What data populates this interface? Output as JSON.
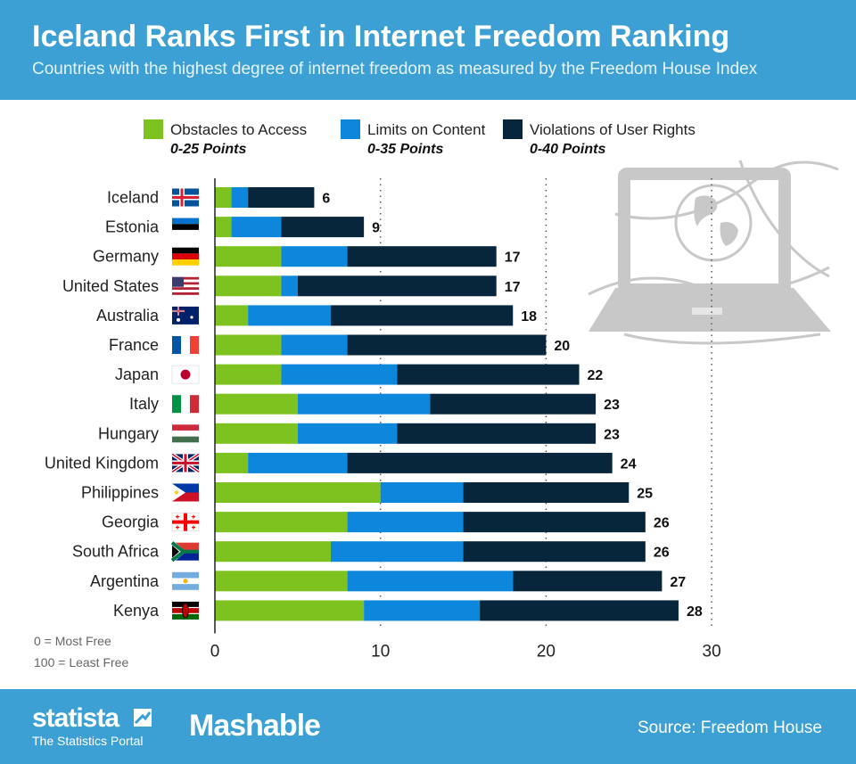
{
  "header": {
    "title": "Iceland Ranks First in Internet Freedom Ranking",
    "subtitle": "Countries with the highest degree of internet freedom as measured by the Freedom House Index"
  },
  "legend": [
    {
      "label": "Obstacles to Access",
      "range": "0-25 Points",
      "color": "#7dc21e"
    },
    {
      "label": "Limits on Content",
      "range": "0-35 Points",
      "color": "#0c87dc"
    },
    {
      "label": "Violations of User Rights",
      "range": "0-40 Points",
      "color": "#07263b"
    }
  ],
  "notes": {
    "line1": "0 = Most Free",
    "line2": "100 = Least Free"
  },
  "footer": {
    "brand": "statista",
    "brand_sub": "The Statistics Portal",
    "partner": "Mashable",
    "source": "Source: Freedom House"
  },
  "chart_data": {
    "type": "bar",
    "orientation": "horizontal",
    "stacked": true,
    "categories": [
      "Iceland",
      "Estonia",
      "Germany",
      "United States",
      "Australia",
      "France",
      "Japan",
      "Italy",
      "Hungary",
      "United Kingdom",
      "Philippines",
      "Georgia",
      "South Africa",
      "Argentina",
      "Kenya"
    ],
    "series": [
      {
        "name": "Obstacles to Access",
        "values": [
          1,
          1,
          4,
          4,
          2,
          4,
          4,
          5,
          5,
          2,
          10,
          8,
          7,
          8,
          9
        ],
        "color": "#7dc21e"
      },
      {
        "name": "Limits on Content",
        "values": [
          1,
          3,
          4,
          1,
          5,
          4,
          7,
          8,
          6,
          6,
          5,
          7,
          8,
          10,
          7
        ],
        "color": "#0c87dc"
      },
      {
        "name": "Violations of User Rights",
        "values": [
          4,
          5,
          9,
          12,
          11,
          12,
          11,
          10,
          12,
          16,
          10,
          11,
          11,
          9,
          12
        ],
        "color": "#07263b"
      }
    ],
    "totals": [
      6,
      9,
      17,
      17,
      18,
      20,
      22,
      23,
      23,
      24,
      25,
      26,
      26,
      27,
      28
    ],
    "xticks": [
      0,
      10,
      20,
      30
    ],
    "xlim": [
      0,
      30
    ],
    "grid": "vertical dotted",
    "legend_position": "top"
  }
}
